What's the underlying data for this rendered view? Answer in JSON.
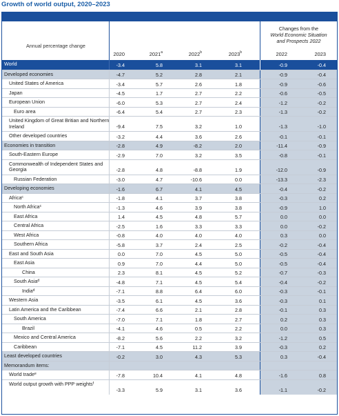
{
  "title": "Growth of world output, 2020–2023",
  "header": {
    "label": "Annual percentage change",
    "group_line1": "Changes from the",
    "group_line2": "World Economic Situation",
    "group_line3": "and Prospects 2022",
    "years": [
      {
        "year": "2020",
        "sup": ""
      },
      {
        "year": "2021",
        "sup": "a"
      },
      {
        "year": "2022",
        "sup": "b"
      },
      {
        "year": "2023",
        "sup": "b"
      },
      {
        "year": "2022",
        "sup": ""
      },
      {
        "year": "2023",
        "sup": ""
      }
    ]
  },
  "colors": {
    "accent": "#1a4f9c",
    "title": "#1c5fa8",
    "shade": "#c9d3df"
  },
  "rows": [
    {
      "name": "World",
      "sup": "",
      "style": "blue",
      "indent": 0,
      "h": 1,
      "v": [
        "-3.4",
        "5.8",
        "3.1",
        "3.1",
        "-0.9",
        "-0.4"
      ]
    },
    {
      "name": "Developed economies",
      "sup": "",
      "style": "gray",
      "indent": 0,
      "h": 1,
      "v": [
        "-4.7",
        "5.2",
        "2.8",
        "2.1",
        "-0.9",
        "-0.4"
      ]
    },
    {
      "name": "United States of America",
      "sup": "",
      "style": "",
      "indent": 1,
      "h": 1,
      "v": [
        "-3.4",
        "5.7",
        "2.6",
        "1.8",
        "-0.9",
        "-0.6"
      ]
    },
    {
      "name": "Japan",
      "sup": "",
      "style": "",
      "indent": 1,
      "h": 1,
      "v": [
        "-4.5",
        "1.7",
        "2.7",
        "2.2",
        "-0.6",
        "-0.5"
      ]
    },
    {
      "name": "European Union",
      "sup": "",
      "style": "",
      "indent": 1,
      "h": 1,
      "v": [
        "-6.0",
        "5.3",
        "2.7",
        "2.4",
        "-1.2",
        "-0.2"
      ]
    },
    {
      "name": "Euro area",
      "sup": "",
      "style": "",
      "indent": 2,
      "h": 1,
      "v": [
        "-6.4",
        "5.4",
        "2.7",
        "2.3",
        "-1.3",
        "-0.2"
      ]
    },
    {
      "name": "United Kingdom of Great Britian and Northern Ireland",
      "sup": "",
      "style": "",
      "indent": 1,
      "h": 2,
      "v": [
        "-9.4",
        "7.5",
        "3.2",
        "1.0",
        "-1.3",
        "-1.0"
      ]
    },
    {
      "name": "Other developed countries",
      "sup": "",
      "style": "",
      "indent": 1,
      "h": 1,
      "v": [
        "-3.2",
        "4.4",
        "3.6",
        "2.6",
        "-0.1",
        "-0.1"
      ]
    },
    {
      "name": "Economies in transition",
      "sup": "",
      "style": "gray",
      "indent": 0,
      "h": 1,
      "v": [
        "-2.8",
        "4.9",
        "-8.2",
        "2.0",
        "-11.4",
        "-0.9"
      ]
    },
    {
      "name": "South-Eastern Europe",
      "sup": "",
      "style": "",
      "indent": 1,
      "h": 1,
      "v": [
        "-2.9",
        "7.0",
        "3.2",
        "3.5",
        "-0.8",
        "-0.1"
      ]
    },
    {
      "name": "Commonwealth of Independent States and Georgia",
      "sup": "",
      "style": "",
      "indent": 1,
      "h": 3,
      "v": [
        "-2.8",
        "4.8",
        "-8.8",
        "1.9",
        "-12.0",
        "-0.9"
      ]
    },
    {
      "name": "Russian Federation",
      "sup": "",
      "style": "",
      "indent": 2,
      "h": 1,
      "v": [
        "-3.0",
        "4.7",
        "-10.6",
        "0.0",
        "-13.3",
        "-2.3"
      ]
    },
    {
      "name": "Developing economies",
      "sup": "",
      "style": "gray",
      "indent": 0,
      "h": 1,
      "v": [
        "-1.6",
        "6.7",
        "4.1",
        "4.5",
        "-0.4",
        "-0.2"
      ]
    },
    {
      "name": "Africa",
      "sup": "c",
      "style": "",
      "indent": 1,
      "h": 1,
      "v": [
        "-1.8",
        "4.1",
        "3.7",
        "3.8",
        "-0.3",
        "0.2"
      ]
    },
    {
      "name": "North Africa",
      "sup": "c",
      "style": "",
      "indent": 2,
      "h": 1,
      "v": [
        "-1.3",
        "4.6",
        "3.9",
        "3.8",
        "-0.9",
        "1.0"
      ]
    },
    {
      "name": "East Africa",
      "sup": "",
      "style": "",
      "indent": 2,
      "h": 1,
      "v": [
        "1.4",
        "4.5",
        "4.8",
        "5.7",
        "0.0",
        "0.0"
      ]
    },
    {
      "name": "Central Africa",
      "sup": "",
      "style": "",
      "indent": 2,
      "h": 1,
      "v": [
        "-2.5",
        "1.6",
        "3.3",
        "3.3",
        "0.0",
        "-0.2"
      ]
    },
    {
      "name": "West Africa",
      "sup": "",
      "style": "",
      "indent": 2,
      "h": 1,
      "v": [
        "-0.8",
        "4.0",
        "4.0",
        "4.0",
        "0.3",
        "0.0"
      ]
    },
    {
      "name": "Southern Africa",
      "sup": "",
      "style": "",
      "indent": 2,
      "h": 1,
      "v": [
        "-5.8",
        "3.7",
        "2.4",
        "2.5",
        "-0.2",
        "-0.4"
      ]
    },
    {
      "name": "East and South Asia",
      "sup": "",
      "style": "",
      "indent": 1,
      "h": 1,
      "v": [
        "0.0",
        "7.0",
        "4.5",
        "5.0",
        "-0.5",
        "-0.4"
      ]
    },
    {
      "name": "East Asia",
      "sup": "",
      "style": "",
      "indent": 2,
      "h": 1,
      "v": [
        "0.9",
        "7.0",
        "4.4",
        "5.0",
        "-0.5",
        "-0.4"
      ]
    },
    {
      "name": "China",
      "sup": "",
      "style": "",
      "indent": 3,
      "h": 1,
      "v": [
        "2.3",
        "8.1",
        "4.5",
        "5.2",
        "-0.7",
        "-0.3"
      ]
    },
    {
      "name": "South Asia",
      "sup": "d",
      "style": "",
      "indent": 2,
      "h": 1,
      "v": [
        "-4.8",
        "7.1",
        "4.5",
        "5.4",
        "-0.4",
        "-0.2"
      ]
    },
    {
      "name": "India",
      "sup": "d",
      "style": "",
      "indent": 3,
      "h": 1,
      "v": [
        "-7.1",
        "8.8",
        "6.4",
        "6.0",
        "-0.3",
        "-0.1"
      ]
    },
    {
      "name": "Western Asia",
      "sup": "",
      "style": "",
      "indent": 1,
      "h": 1,
      "v": [
        "-3.5",
        "6.1",
        "4.5",
        "3.6",
        "-0.3",
        "0.1"
      ]
    },
    {
      "name": "Latin America and the Caribbean",
      "sup": "",
      "style": "",
      "indent": 1,
      "h": 1,
      "v": [
        "-7.4",
        "6.6",
        "2.1",
        "2.8",
        "-0.1",
        "0.3"
      ]
    },
    {
      "name": "South America",
      "sup": "",
      "style": "",
      "indent": 2,
      "h": 1,
      "v": [
        "-7.0",
        "7.1",
        "1.8",
        "2.7",
        "0.2",
        "0.3"
      ]
    },
    {
      "name": "Brazil",
      "sup": "",
      "style": "",
      "indent": 3,
      "h": 1,
      "v": [
        "-4.1",
        "4.6",
        "0.5",
        "2.2",
        "0.0",
        "0.3"
      ]
    },
    {
      "name": "Mexico and Central America",
      "sup": "",
      "style": "",
      "indent": 2,
      "h": 1,
      "v": [
        "-8.2",
        "5.6",
        "2.2",
        "3.2",
        "-1.2",
        "0.5"
      ]
    },
    {
      "name": "Caribbean",
      "sup": "",
      "style": "",
      "indent": 2,
      "h": 1,
      "v": [
        "-7.1",
        "4.5",
        "11.2",
        "3.9",
        "-0.3",
        "0.2"
      ]
    },
    {
      "name": "Least developed countries",
      "sup": "",
      "style": "gray",
      "indent": 0,
      "h": 1,
      "v": [
        "-0.2",
        "3.0",
        "4.3",
        "5.3",
        "0.3",
        "-0.4"
      ]
    },
    {
      "name": "Memorandum items:",
      "sup": "",
      "style": "gray",
      "indent": 0,
      "h": 1,
      "v": [
        "",
        "",
        "",
        "",
        "",
        ""
      ]
    },
    {
      "name": "World trade",
      "sup": "e",
      "style": "",
      "indent": 1,
      "h": 1,
      "v": [
        "-7.8",
        "10.4",
        "4.1",
        "4.8",
        "-1.6",
        "0.8"
      ]
    },
    {
      "name": "World output growth with PPP weights",
      "sup": "f",
      "style": "",
      "indent": 1,
      "h": 3,
      "v": [
        "-3.3",
        "5.9",
        "3.1",
        "3.6",
        "-1.1",
        "-0.2"
      ]
    }
  ]
}
